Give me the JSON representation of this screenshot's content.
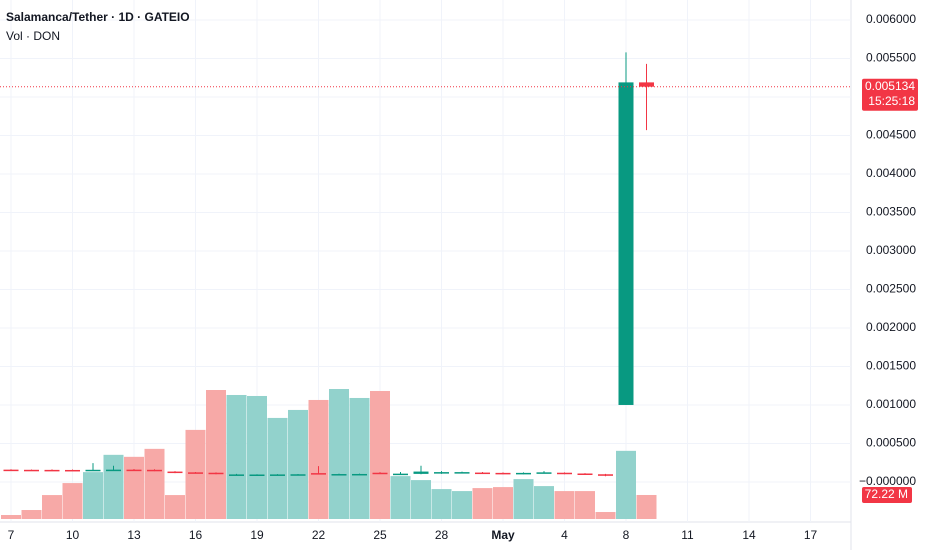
{
  "chart_data": {
    "type": "candlestick",
    "title": "Salamanca/Tether · 1D · GATEIO",
    "subtitle": "Vol · DON",
    "categories": [
      "7",
      null,
      null,
      "10",
      null,
      null,
      "13",
      null,
      null,
      "16",
      null,
      null,
      "19",
      null,
      null,
      "22",
      null,
      null,
      "25",
      null,
      null,
      "28",
      null,
      null,
      "May",
      null,
      null,
      "4",
      null,
      null,
      "8",
      null,
      null,
      "11",
      null,
      null,
      "14",
      null,
      null,
      "17"
    ],
    "open": [
      0.00016,
      0.000158,
      0.000157,
      0.000156,
      0.00015,
      0.000152,
      0.00016,
      0.000158,
      0.000135,
      0.000125,
      0.00012,
      9e-05,
      9e-05,
      9e-05,
      9.2e-05,
      0.000115,
      9.5e-05,
      9.6e-05,
      0.00012,
      0.0001,
      0.000105,
      0.000118,
      0.00012,
      0.000122,
      0.000118,
      0.000108,
      0.000115,
      0.00012,
      0.00011,
      0.0001,
      0.001,
      0.00519,
      null,
      null,
      null,
      null,
      null,
      null,
      null,
      null
    ],
    "high": [
      0.000165,
      0.000162,
      0.000163,
      0.000162,
      0.000245,
      0.00021,
      0.000168,
      0.000165,
      0.00014,
      0.00013,
      0.000125,
      0.000105,
      0.0001,
      0.000102,
      0.000104,
      0.000205,
      0.000108,
      0.000108,
      0.000128,
      0.00013,
      0.00021,
      0.00014,
      0.000135,
      0.00013,
      0.000125,
      0.000125,
      0.00014,
      0.000125,
      0.000115,
      0.000105,
      0.00558,
      0.00543,
      null,
      null,
      null,
      null,
      null,
      null,
      null,
      null
    ],
    "low": [
      0.00015,
      0.00015,
      0.00015,
      0.00015,
      0.000145,
      0.000148,
      0.00015,
      0.00014,
      0.000115,
      0.00011,
      0.0001,
      8.5e-05,
      8.5e-05,
      8.5e-05,
      8.8e-05,
      0.000105,
      9e-05,
      9e-05,
      0.00011,
      9e-05,
      0.0001,
      0.000105,
      0.00011,
      0.00011,
      0.0001,
      0.0001,
      0.00011,
      0.0001,
      9e-05,
      7.5e-05,
      0.001,
      0.00457,
      null,
      null,
      null,
      null,
      null,
      null,
      null,
      null
    ],
    "close": [
      0.000155,
      0.000154,
      0.000153,
      0.000152,
      0.000158,
      0.00016,
      0.000152,
      0.00015,
      0.00012,
      0.000115,
      0.00011,
      9.8e-05,
      9.7e-05,
      9.8e-05,
      0.0001,
      0.000108,
      0.000103,
      0.000104,
      0.000112,
      0.000108,
      0.000135,
      0.000128,
      0.000128,
      0.000115,
      0.00011,
      0.000118,
      0.000125,
      0.000108,
      0.0001,
      8e-05,
      0.00519,
      0.005134,
      null,
      null,
      null,
      null,
      null,
      null,
      null,
      null
    ],
    "volume": {
      "values": [
        12000000,
        27000000,
        72000000,
        108000000,
        141000000,
        193000000,
        187000000,
        211000000,
        72000000,
        268000000,
        388000000,
        373000000,
        370000000,
        304000000,
        328000000,
        358000000,
        391000000,
        364000000,
        385000000,
        129000000,
        117000000,
        90000000,
        84000000,
        93000000,
        96000000,
        120000000,
        99000000,
        84000000,
        84000000,
        21000000,
        205000000,
        72220000,
        null,
        null,
        null,
        null,
        null,
        null,
        null,
        null
      ],
      "value_labels": [
        null,
        null,
        null,
        null,
        null,
        null,
        null,
        null,
        null,
        null,
        null,
        null,
        null,
        null,
        null,
        null,
        null,
        null,
        null,
        null,
        null,
        null,
        null,
        null,
        null,
        null,
        null,
        null,
        null,
        null,
        null,
        "72.22 M",
        null,
        null,
        null,
        null,
        null,
        null,
        null,
        null
      ]
    },
    "up_color": "#089981",
    "down_color": "#f23645",
    "volume_up_color": "#92d2cc",
    "volume_down_color": "#f7a9a7",
    "ylim": [
      -0.000494,
      0.00626
    ],
    "yticks": [
      {
        "value": 0.006,
        "label": "0.006000"
      },
      {
        "value": 0.0055,
        "label": "0.005500"
      },
      {
        "value": 0.005,
        "label": "0.005000"
      },
      {
        "value": 0.0045,
        "label": "0.004500"
      },
      {
        "value": 0.004,
        "label": "0.004000"
      },
      {
        "value": 0.0035,
        "label": "0.003500"
      },
      {
        "value": 0.003,
        "label": "0.003000"
      },
      {
        "value": 0.0025,
        "label": "0.002500"
      },
      {
        "value": 0.002,
        "label": "0.002000"
      },
      {
        "value": 0.0015,
        "label": "0.001500"
      },
      {
        "value": 0.001,
        "label": "0.001000"
      },
      {
        "value": 0.0005,
        "label": "0.000500"
      },
      {
        "value": 0,
        "label": "−0.000000"
      }
    ],
    "last_price": {
      "value": 0.005134,
      "label": "0.005134"
    },
    "countdown": "15:25:18",
    "grid": true
  }
}
